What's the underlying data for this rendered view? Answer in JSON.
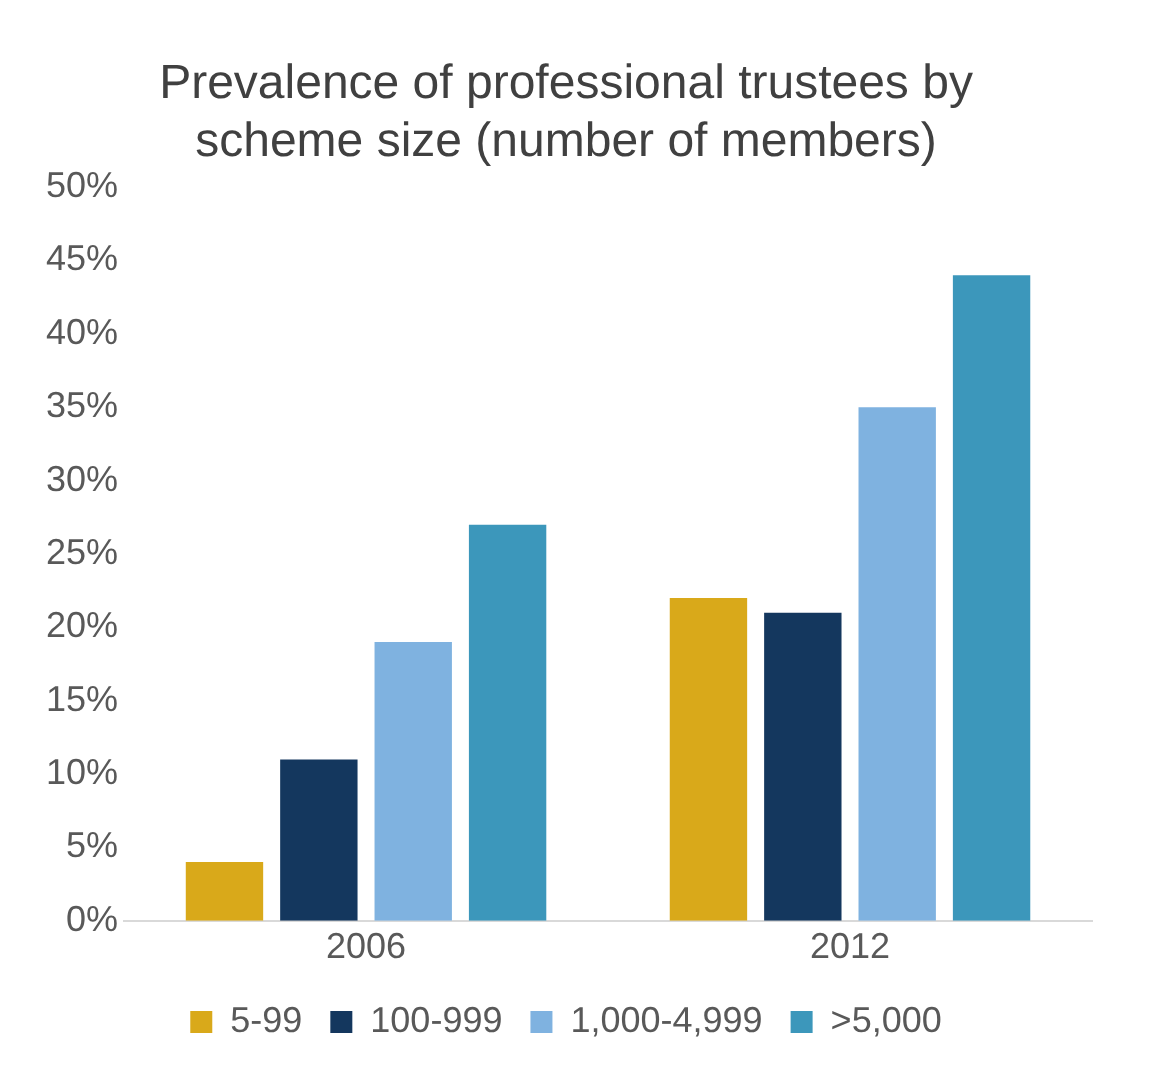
{
  "chart_data": {
    "type": "bar",
    "title": "Prevalence of professional trustees by scheme size (number of members)",
    "categories": [
      "2006",
      "2012"
    ],
    "series": [
      {
        "name": "5-99",
        "color": "#d9a91a",
        "values": [
          4,
          22
        ]
      },
      {
        "name": "100-999",
        "color": "#14375e",
        "values": [
          11,
          21
        ]
      },
      {
        "name": "1,000-4,999",
        "color": "#7fb2e0",
        "values": [
          19,
          35
        ]
      },
      {
        "name": ">5,000",
        "color": "#3c97bb",
        "values": [
          27,
          44
        ]
      }
    ],
    "ylim": [
      0,
      50
    ],
    "yticks": [
      {
        "value": 0,
        "label": "0%"
      },
      {
        "value": 5,
        "label": "5%"
      },
      {
        "value": 10,
        "label": "10%"
      },
      {
        "value": 15,
        "label": "15%"
      },
      {
        "value": 20,
        "label": "20%"
      },
      {
        "value": 25,
        "label": "25%"
      },
      {
        "value": 30,
        "label": "30%"
      },
      {
        "value": 35,
        "label": "35%"
      },
      {
        "value": 40,
        "label": "40%"
      },
      {
        "value": 45,
        "label": "45%"
      },
      {
        "value": 50,
        "label": "50%"
      }
    ],
    "grid": false,
    "legend": "bottom"
  }
}
